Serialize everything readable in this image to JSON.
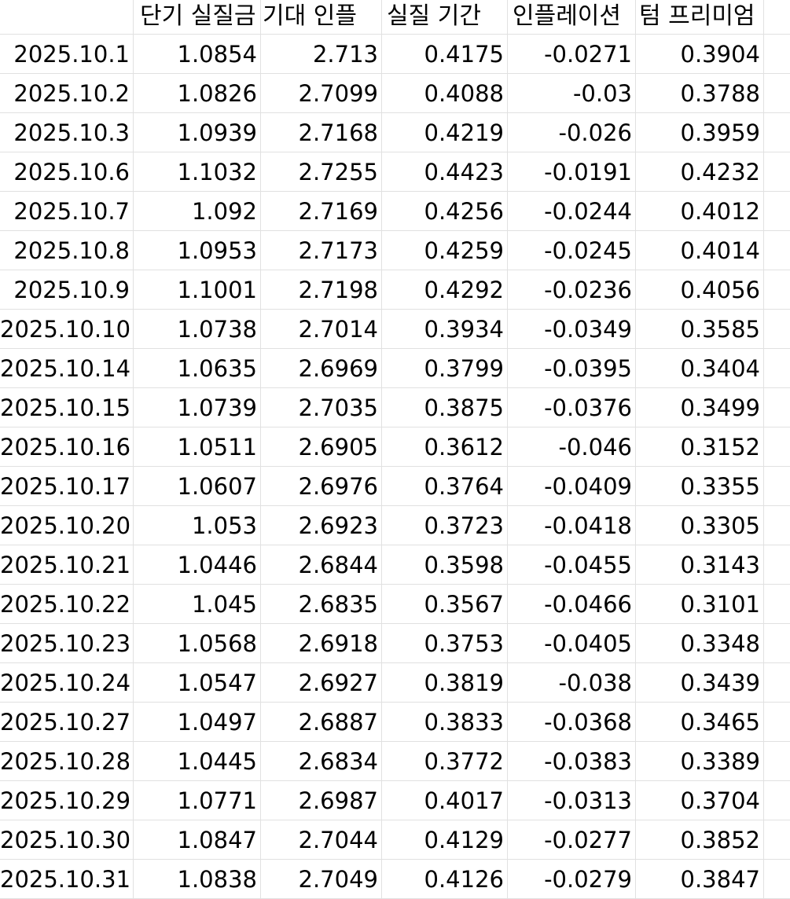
{
  "sheet": {
    "headers": [
      "",
      "단기 실질금",
      "기대 인플",
      "실질 기간",
      "인플레이션",
      "텀 프리미엄"
    ],
    "rows": [
      [
        "2025.10.1",
        "1.0854",
        "2.713",
        "0.4175",
        "-0.0271",
        "0.3904"
      ],
      [
        "2025.10.2",
        "1.0826",
        "2.7099",
        "0.4088",
        "-0.03",
        "0.3788"
      ],
      [
        "2025.10.3",
        "1.0939",
        "2.7168",
        "0.4219",
        "-0.026",
        "0.3959"
      ],
      [
        "2025.10.6",
        "1.1032",
        "2.7255",
        "0.4423",
        "-0.0191",
        "0.4232"
      ],
      [
        "2025.10.7",
        "1.092",
        "2.7169",
        "0.4256",
        "-0.0244",
        "0.4012"
      ],
      [
        "2025.10.8",
        "1.0953",
        "2.7173",
        "0.4259",
        "-0.0245",
        "0.4014"
      ],
      [
        "2025.10.9",
        "1.1001",
        "2.7198",
        "0.4292",
        "-0.0236",
        "0.4056"
      ],
      [
        "2025.10.10",
        "1.0738",
        "2.7014",
        "0.3934",
        "-0.0349",
        "0.3585"
      ],
      [
        "2025.10.14",
        "1.0635",
        "2.6969",
        "0.3799",
        "-0.0395",
        "0.3404"
      ],
      [
        "2025.10.15",
        "1.0739",
        "2.7035",
        "0.3875",
        "-0.0376",
        "0.3499"
      ],
      [
        "2025.10.16",
        "1.0511",
        "2.6905",
        "0.3612",
        "-0.046",
        "0.3152"
      ],
      [
        "2025.10.17",
        "1.0607",
        "2.6976",
        "0.3764",
        "-0.0409",
        "0.3355"
      ],
      [
        "2025.10.20",
        "1.053",
        "2.6923",
        "0.3723",
        "-0.0418",
        "0.3305"
      ],
      [
        "2025.10.21",
        "1.0446",
        "2.6844",
        "0.3598",
        "-0.0455",
        "0.3143"
      ],
      [
        "2025.10.22",
        "1.045",
        "2.6835",
        "0.3567",
        "-0.0466",
        "0.3101"
      ],
      [
        "2025.10.23",
        "1.0568",
        "2.6918",
        "0.3753",
        "-0.0405",
        "0.3348"
      ],
      [
        "2025.10.24",
        "1.0547",
        "2.6927",
        "0.3819",
        "-0.038",
        "0.3439"
      ],
      [
        "2025.10.27",
        "1.0497",
        "2.6887",
        "0.3833",
        "-0.0368",
        "0.3465"
      ],
      [
        "2025.10.28",
        "1.0445",
        "2.6834",
        "0.3772",
        "-0.0383",
        "0.3389"
      ],
      [
        "2025.10.29",
        "1.0771",
        "2.6987",
        "0.4017",
        "-0.0313",
        "0.3704"
      ],
      [
        "2025.10.30",
        "1.0847",
        "2.7044",
        "0.4129",
        "-0.0277",
        "0.3852"
      ],
      [
        "2025.10.31",
        "1.0838",
        "2.7049",
        "0.4126",
        "-0.0279",
        "0.3847"
      ]
    ]
  }
}
